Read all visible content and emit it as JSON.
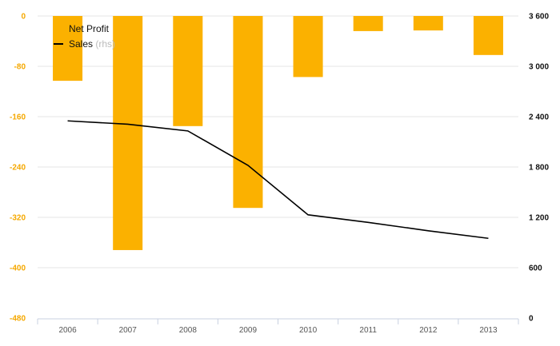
{
  "chart_data": {
    "type": "bar",
    "categories": [
      "2006",
      "2007",
      "2008",
      "2009",
      "2010",
      "2011",
      "2012",
      "2013"
    ],
    "series": [
      {
        "name": "Net Profit",
        "type": "bar",
        "axis": "left",
        "color": "#fbb100",
        "values": [
          -103,
          -372,
          -175,
          -305,
          -97,
          -24,
          -23,
          -62
        ]
      },
      {
        "name": "Sales",
        "type": "line",
        "axis": "right",
        "color": "#000000",
        "values": [
          2350,
          2310,
          2230,
          1820,
          1230,
          1140,
          1040,
          950
        ]
      }
    ],
    "legend": {
      "position": "top-left",
      "entries": [
        {
          "label": "Net Profit",
          "suffix": ""
        },
        {
          "label": "Sales",
          "suffix": " (rhs)"
        }
      ]
    },
    "y_left": {
      "ylim": [
        -480,
        0
      ],
      "ticks": [
        0,
        -80,
        -160,
        -240,
        -320,
        -400,
        -480
      ],
      "tick_labels": [
        "0",
        "-80",
        "-160",
        "-240",
        "-320",
        "-400",
        "-480"
      ]
    },
    "y_right": {
      "ylim": [
        0,
        3600
      ],
      "ticks": [
        3600,
        3000,
        2400,
        1800,
        1200,
        600,
        0
      ],
      "tick_labels": [
        "3 600",
        "3 000",
        "2 400",
        "1 800",
        "1 200",
        "600",
        "0"
      ]
    },
    "grid": true,
    "title": "",
    "xlabel": "",
    "ylabel": ""
  }
}
